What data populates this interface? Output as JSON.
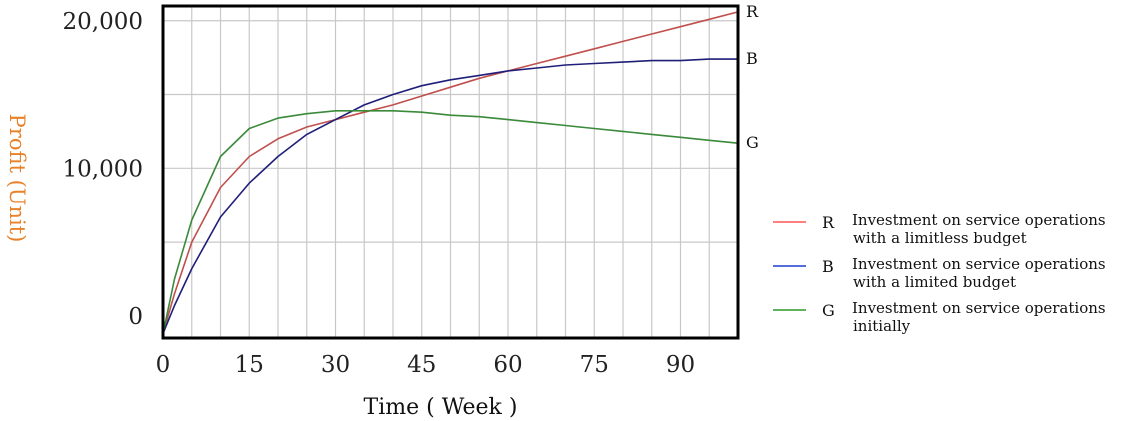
{
  "chart_data": {
    "type": "line",
    "xlabel": "Time ( Week )",
    "ylabel": "Profit (Unit)",
    "xlim": [
      0,
      100
    ],
    "ylim": [
      -1500,
      21000
    ],
    "x_ticks": [
      0,
      15,
      30,
      45,
      60,
      75,
      90
    ],
    "x_tick_labels": [
      "0",
      "15",
      "30",
      "45",
      "60",
      "75",
      "90"
    ],
    "y_ticks": [
      0,
      10000,
      20000
    ],
    "y_tick_labels": [
      "0",
      "10,000",
      "20,000"
    ],
    "grid": true,
    "legend_position": "right",
    "series": [
      {
        "name": "R",
        "color": "#c0504d",
        "legend_label": "Investment on service operations with a limitless budget",
        "legend_lines": [
          "Investment on service operations",
          "with a limitless budget"
        ],
        "x": [
          0,
          2,
          5,
          10,
          15,
          20,
          25,
          30,
          35,
          40,
          45,
          50,
          55,
          60,
          65,
          70,
          75,
          80,
          85,
          90,
          95,
          100
        ],
        "y": [
          -1200,
          1500,
          5000,
          8700,
          10800,
          12000,
          12800,
          13300,
          13800,
          14300,
          14900,
          15500,
          16100,
          16600,
          17100,
          17600,
          18100,
          18600,
          19100,
          19600,
          20100,
          20600
        ]
      },
      {
        "name": "B",
        "color": "#1f1f7a",
        "legend_label": "Investment on service operations with a limited budget",
        "legend_lines": [
          "Investment on service operations",
          "with a limited budget"
        ],
        "x": [
          0,
          2,
          5,
          10,
          15,
          20,
          25,
          30,
          35,
          40,
          45,
          50,
          55,
          60,
          65,
          70,
          75,
          80,
          85,
          90,
          95,
          100
        ],
        "y": [
          -1200,
          700,
          3200,
          6700,
          9000,
          10800,
          12300,
          13300,
          14300,
          15000,
          15600,
          16000,
          16300,
          16600,
          16800,
          17000,
          17100,
          17200,
          17300,
          17300,
          17400,
          17400
        ]
      },
      {
        "name": "G",
        "color": "#3a8a3a",
        "legend_label": "Investment on service operations initially",
        "legend_lines": [
          "Investment on service operations",
          "initially"
        ],
        "x": [
          0,
          2,
          5,
          10,
          15,
          20,
          25,
          30,
          35,
          40,
          45,
          50,
          55,
          60,
          65,
          70,
          75,
          80,
          85,
          90,
          95,
          100
        ],
        "y": [
          -1200,
          2500,
          6500,
          10800,
          12700,
          13400,
          13700,
          13900,
          13900,
          13900,
          13800,
          13600,
          13500,
          13300,
          13100,
          12900,
          12700,
          12500,
          12300,
          12100,
          11900,
          11700
        ]
      }
    ],
    "legend_colors": [
      "#ff5555",
      "#1f3fd0",
      "#2a9a2a"
    ]
  }
}
